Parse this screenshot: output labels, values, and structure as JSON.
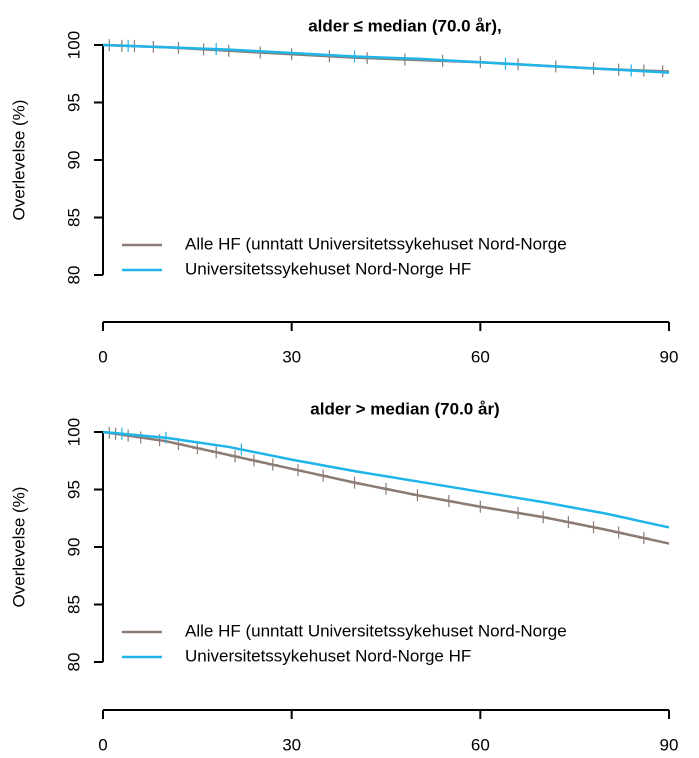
{
  "chart_data": [
    {
      "type": "line",
      "title": "alder ≤ median (70.0 år),",
      "ylabel": "Overlevelse (%)",
      "x": [
        0,
        10,
        20,
        30,
        40,
        50,
        60,
        70,
        80,
        90
      ],
      "series": [
        {
          "name": "Alle HF (unntatt Universitetssykehuset Nord-Norge",
          "color": "#8c7b75",
          "values": [
            100,
            99.8,
            99.5,
            99.2,
            98.9,
            98.7,
            98.5,
            98.2,
            97.9,
            97.7
          ],
          "censored": [
            1,
            3,
            5,
            8,
            12,
            16,
            20,
            25,
            30,
            36,
            42,
            48,
            54,
            60,
            66,
            72,
            78,
            82,
            86,
            89
          ]
        },
        {
          "name": "Universitetssykehuset Nord-Norge HF",
          "color": "#1fb5e8",
          "values": [
            100,
            99.8,
            99.6,
            99.3,
            99,
            98.8,
            98.5,
            98.2,
            97.9,
            97.6
          ],
          "censored": [
            4,
            18,
            40,
            64,
            84
          ]
        }
      ],
      "xlim": [
        0,
        90
      ],
      "ylim": [
        80,
        100
      ],
      "xticks": [
        0,
        30,
        60,
        90
      ],
      "yticks": [
        80,
        85,
        90,
        95,
        100
      ],
      "legend": "bottom-left"
    },
    {
      "type": "line",
      "title": "alder > median (70.0 år)",
      "ylabel": "Overlevelse (%)",
      "x": [
        0,
        10,
        20,
        30,
        40,
        50,
        60,
        70,
        80,
        90
      ],
      "series": [
        {
          "name": "Alle HF (unntatt Universitetssykehuset Nord-Norge",
          "color": "#8c7b75",
          "values": [
            100,
            99.2,
            98,
            96.8,
            95.6,
            94.5,
            93.5,
            92.6,
            91.5,
            90.3
          ],
          "censored": [
            1,
            2,
            4,
            6,
            9,
            12,
            15,
            18,
            21,
            24,
            27,
            31,
            35,
            40,
            45,
            50,
            55,
            60,
            66,
            70,
            74,
            78,
            82,
            86
          ]
        },
        {
          "name": "Universitetssykehuset Nord-Norge HF",
          "color": "#1fb5e8",
          "values": [
            100,
            99.5,
            98.7,
            97.6,
            96.6,
            95.7,
            94.8,
            93.9,
            92.9,
            91.7
          ],
          "censored": [
            3,
            10,
            22
          ]
        }
      ],
      "xlim": [
        0,
        90
      ],
      "ylim": [
        80,
        100
      ],
      "xticks": [
        0,
        30,
        60,
        90
      ],
      "yticks": [
        80,
        85,
        90,
        95,
        100
      ],
      "legend": "bottom-left"
    }
  ]
}
